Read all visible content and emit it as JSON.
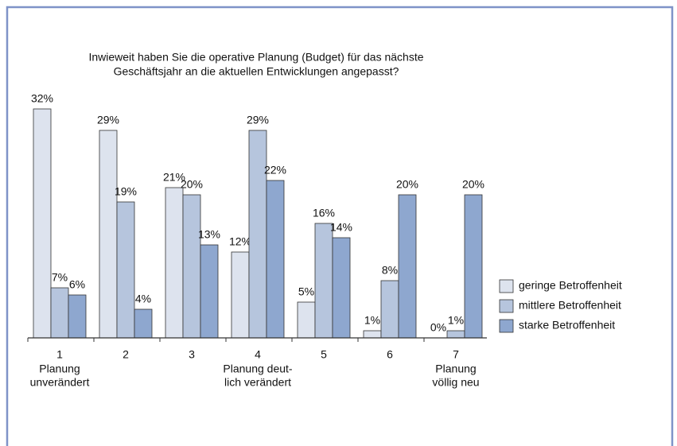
{
  "chart_data": {
    "type": "bar",
    "title": [
      "Inwieweit haben Sie die operative Planung (Budget) für das nächste",
      "Geschäftsjahr an die aktuellen Entwicklungen angepasst?"
    ],
    "categories": [
      "1",
      "2",
      "3",
      "4",
      "5",
      "6",
      "7"
    ],
    "annotations": [
      [
        "Planung",
        "unverändert"
      ],
      [
        "Planung deut-",
        "lich verändert"
      ],
      [
        "Planung",
        "völlig neu"
      ]
    ],
    "series": [
      {
        "name": "geringe Betroffenheit",
        "color": "#dde3ee",
        "values": [
          32,
          29,
          21,
          12,
          5,
          1,
          0
        ],
        "value_labels": [
          "32%",
          "29%",
          "21%",
          "12%",
          "5%",
          "1%",
          "0%"
        ]
      },
      {
        "name": "mittlere Betroffenheit",
        "color": "#b6c5dd",
        "values": [
          7,
          19,
          20,
          29,
          16,
          8,
          1
        ],
        "value_labels": [
          "7%",
          "19%",
          "20%",
          "29%",
          "16%",
          "8%",
          "1%"
        ]
      },
      {
        "name": "starke Betroffenheit",
        "color": "#8ea7cf",
        "values": [
          6,
          4,
          13,
          22,
          14,
          20,
          20
        ],
        "value_labels": [
          "6%",
          "4%",
          "13%",
          "22%",
          "14%",
          "20%",
          "20%"
        ]
      }
    ],
    "legend": "right"
  }
}
